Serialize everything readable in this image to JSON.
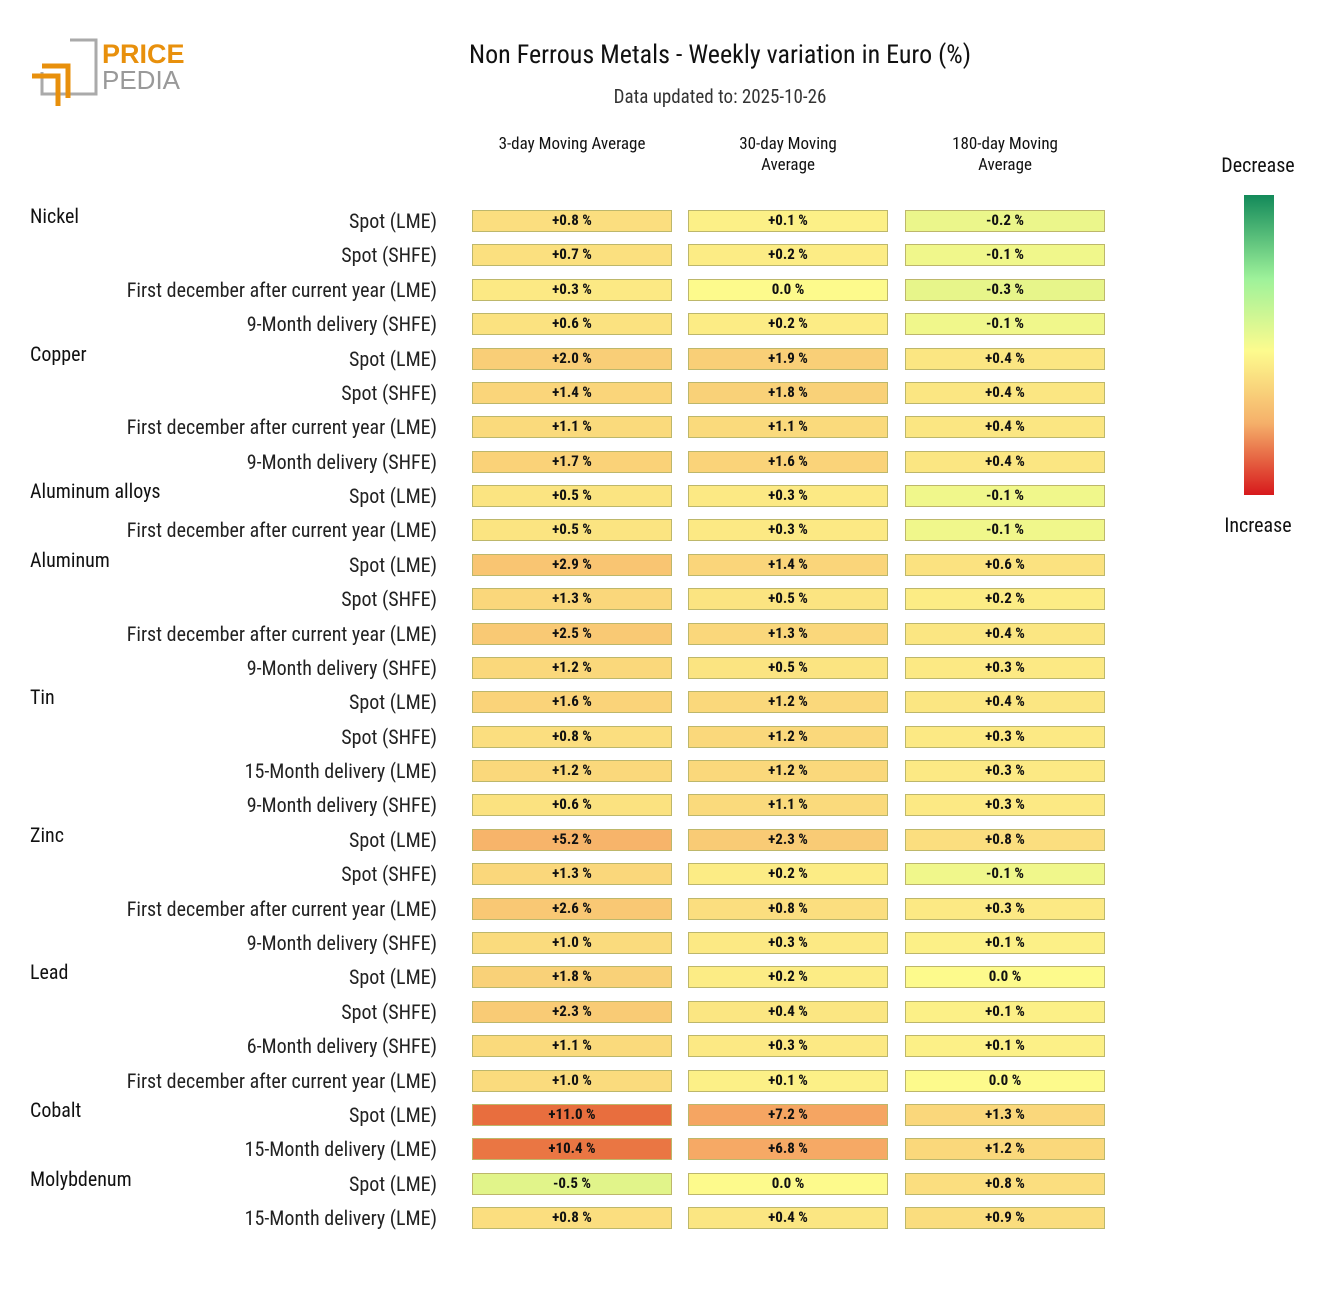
{
  "logo": {
    "line1": "PRICE",
    "line2": "PEDIA"
  },
  "chart_data": {
    "type": "heatmap",
    "title": "Non Ferrous Metals - Weekly variation in Euro (%)",
    "subtitle": "Data updated to: 2025-10-26",
    "columns": [
      "3-day Moving Average",
      "30-day Moving Average",
      "180-day Moving Average"
    ],
    "legend": {
      "top": "Decrease",
      "bottom": "Increase"
    },
    "groups": [
      {
        "name": "Nickel",
        "rows": [
          {
            "label": "Spot (LME)",
            "values": [
              0.8,
              0.1,
              -0.2
            ],
            "value_labels": [
              "+0.8 %",
              "+0.1 %",
              "-0.2 %"
            ]
          },
          {
            "label": "Spot (SHFE)",
            "values": [
              0.7,
              0.2,
              -0.1
            ],
            "value_labels": [
              "+0.7 %",
              "+0.2 %",
              "-0.1 %"
            ]
          },
          {
            "label": "First december after current year (LME)",
            "values": [
              0.3,
              0.0,
              -0.3
            ],
            "value_labels": [
              "+0.3 %",
              "0.0 %",
              "-0.3 %"
            ]
          },
          {
            "label": "9-Month delivery (SHFE)",
            "values": [
              0.6,
              0.2,
              -0.1
            ],
            "value_labels": [
              "+0.6 %",
              "+0.2 %",
              "-0.1 %"
            ]
          }
        ]
      },
      {
        "name": "Copper",
        "rows": [
          {
            "label": "Spot (LME)",
            "values": [
              2.0,
              1.9,
              0.4
            ],
            "value_labels": [
              "+2.0 %",
              "+1.9 %",
              "+0.4 %"
            ]
          },
          {
            "label": "Spot (SHFE)",
            "values": [
              1.4,
              1.8,
              0.4
            ],
            "value_labels": [
              "+1.4 %",
              "+1.8 %",
              "+0.4 %"
            ]
          },
          {
            "label": "First december after current year (LME)",
            "values": [
              1.1,
              1.1,
              0.4
            ],
            "value_labels": [
              "+1.1 %",
              "+1.1 %",
              "+0.4 %"
            ]
          },
          {
            "label": "9-Month delivery (SHFE)",
            "values": [
              1.7,
              1.6,
              0.4
            ],
            "value_labels": [
              "+1.7 %",
              "+1.6 %",
              "+0.4 %"
            ]
          }
        ]
      },
      {
        "name": "Aluminum alloys",
        "rows": [
          {
            "label": "Spot (LME)",
            "values": [
              0.5,
              0.3,
              -0.1
            ],
            "value_labels": [
              "+0.5 %",
              "+0.3 %",
              "-0.1 %"
            ]
          },
          {
            "label": "First december after current year (LME)",
            "values": [
              0.5,
              0.3,
              -0.1
            ],
            "value_labels": [
              "+0.5 %",
              "+0.3 %",
              "-0.1 %"
            ]
          }
        ]
      },
      {
        "name": "Aluminum",
        "rows": [
          {
            "label": "Spot (LME)",
            "values": [
              2.9,
              1.4,
              0.6
            ],
            "value_labels": [
              "+2.9 %",
              "+1.4 %",
              "+0.6 %"
            ]
          },
          {
            "label": "Spot (SHFE)",
            "values": [
              1.3,
              0.5,
              0.2
            ],
            "value_labels": [
              "+1.3 %",
              "+0.5 %",
              "+0.2 %"
            ]
          },
          {
            "label": "First december after current year (LME)",
            "values": [
              2.5,
              1.3,
              0.4
            ],
            "value_labels": [
              "+2.5 %",
              "+1.3 %",
              "+0.4 %"
            ]
          },
          {
            "label": "9-Month delivery (SHFE)",
            "values": [
              1.2,
              0.5,
              0.3
            ],
            "value_labels": [
              "+1.2 %",
              "+0.5 %",
              "+0.3 %"
            ]
          }
        ]
      },
      {
        "name": "Tin",
        "rows": [
          {
            "label": "Spot (LME)",
            "values": [
              1.6,
              1.2,
              0.4
            ],
            "value_labels": [
              "+1.6 %",
              "+1.2 %",
              "+0.4 %"
            ]
          },
          {
            "label": "Spot (SHFE)",
            "values": [
              0.8,
              1.2,
              0.3
            ],
            "value_labels": [
              "+0.8 %",
              "+1.2 %",
              "+0.3 %"
            ]
          },
          {
            "label": "15-Month delivery (LME)",
            "values": [
              1.2,
              1.2,
              0.3
            ],
            "value_labels": [
              "+1.2 %",
              "+1.2 %",
              "+0.3 %"
            ]
          },
          {
            "label": "9-Month delivery (SHFE)",
            "values": [
              0.6,
              1.1,
              0.3
            ],
            "value_labels": [
              "+0.6 %",
              "+1.1 %",
              "+0.3 %"
            ]
          }
        ]
      },
      {
        "name": "Zinc",
        "rows": [
          {
            "label": "Spot (LME)",
            "values": [
              5.2,
              2.3,
              0.8
            ],
            "value_labels": [
              "+5.2 %",
              "+2.3 %",
              "+0.8 %"
            ]
          },
          {
            "label": "Spot (SHFE)",
            "values": [
              1.3,
              0.2,
              -0.1
            ],
            "value_labels": [
              "+1.3 %",
              "+0.2 %",
              "-0.1 %"
            ]
          },
          {
            "label": "First december after current year (LME)",
            "values": [
              2.6,
              0.8,
              0.3
            ],
            "value_labels": [
              "+2.6 %",
              "+0.8 %",
              "+0.3 %"
            ]
          },
          {
            "label": "9-Month delivery (SHFE)",
            "values": [
              1.0,
              0.3,
              0.1
            ],
            "value_labels": [
              "+1.0 %",
              "+0.3 %",
              "+0.1 %"
            ]
          }
        ]
      },
      {
        "name": "Lead",
        "rows": [
          {
            "label": "Spot (LME)",
            "values": [
              1.8,
              0.2,
              0.0
            ],
            "value_labels": [
              "+1.8 %",
              "+0.2 %",
              "0.0 %"
            ]
          },
          {
            "label": "Spot (SHFE)",
            "values": [
              2.3,
              0.4,
              0.1
            ],
            "value_labels": [
              "+2.3 %",
              "+0.4 %",
              "+0.1 %"
            ]
          },
          {
            "label": "6-Month delivery (SHFE)",
            "values": [
              1.1,
              0.3,
              0.1
            ],
            "value_labels": [
              "+1.1 %",
              "+0.3 %",
              "+0.1 %"
            ]
          },
          {
            "label": "First december after current year (LME)",
            "values": [
              1.0,
              0.1,
              0.0
            ],
            "value_labels": [
              "+1.0 %",
              "+0.1 %",
              "0.0 %"
            ]
          }
        ]
      },
      {
        "name": "Cobalt",
        "rows": [
          {
            "label": "Spot (LME)",
            "values": [
              11.0,
              7.2,
              1.3
            ],
            "value_labels": [
              "+11.0 %",
              "+7.2 %",
              "+1.3 %"
            ]
          },
          {
            "label": "15-Month delivery (LME)",
            "values": [
              10.4,
              6.8,
              1.2
            ],
            "value_labels": [
              "+10.4 %",
              "+6.8 %",
              "+1.2 %"
            ]
          }
        ]
      },
      {
        "name": "Molybdenum",
        "rows": [
          {
            "label": "Spot (LME)",
            "values": [
              -0.5,
              0.0,
              0.8
            ],
            "value_labels": [
              "-0.5 %",
              "0.0 %",
              "+0.8 %"
            ]
          },
          {
            "label": "15-Month delivery (LME)",
            "values": [
              0.8,
              0.4,
              0.9
            ],
            "value_labels": [
              "+0.8 %",
              "+0.4 %",
              "+0.9 %"
            ]
          }
        ]
      }
    ]
  }
}
